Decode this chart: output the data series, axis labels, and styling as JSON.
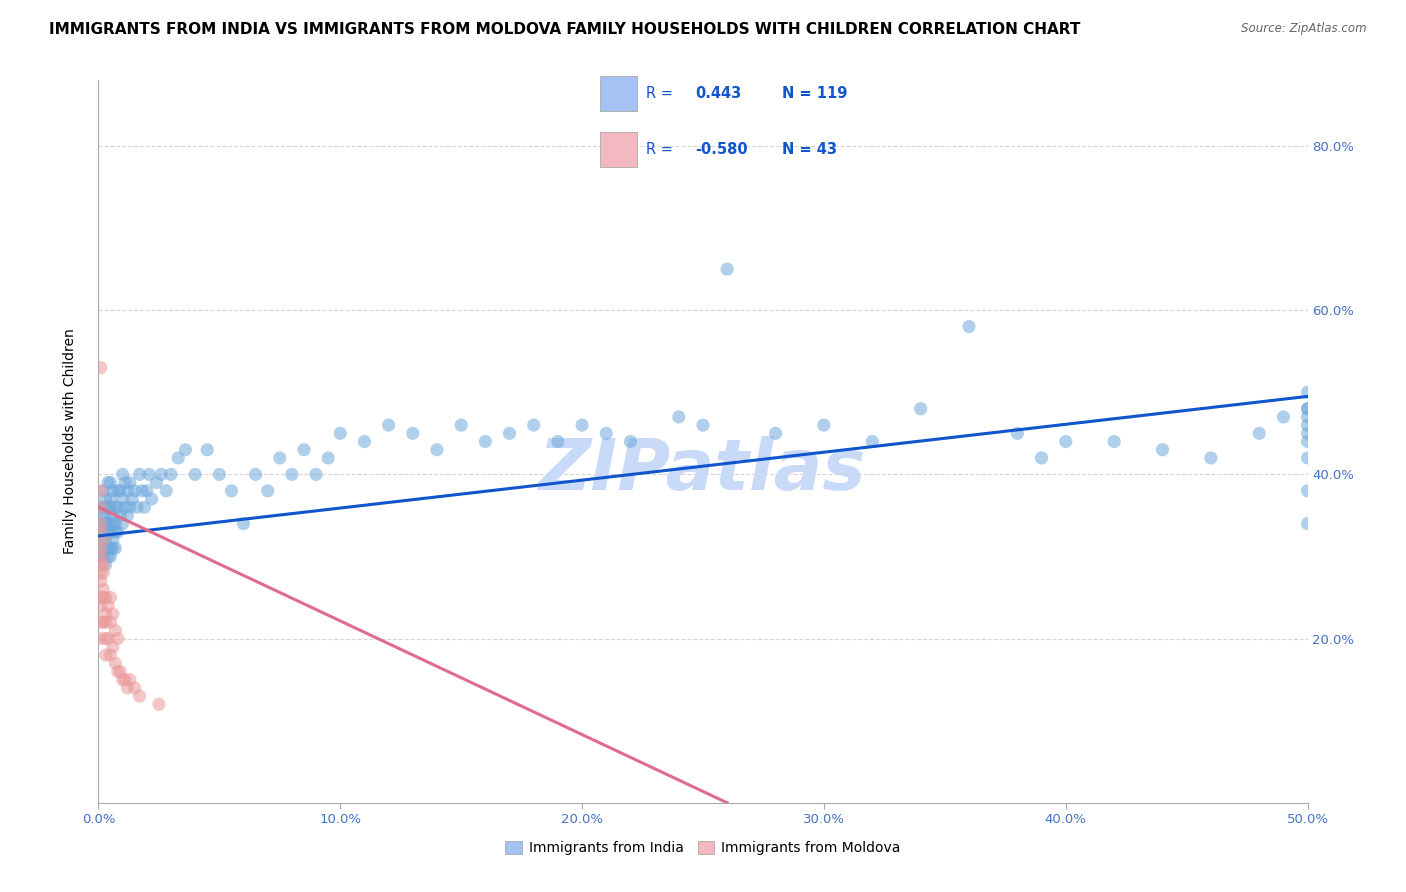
{
  "title": "IMMIGRANTS FROM INDIA VS IMMIGRANTS FROM MOLDOVA FAMILY HOUSEHOLDS WITH CHILDREN CORRELATION CHART",
  "source": "Source: ZipAtlas.com",
  "ylabel": "Family Households with Children",
  "xlim": [
    0.0,
    0.5
  ],
  "ylim": [
    0.0,
    0.88
  ],
  "xtick_vals": [
    0.0,
    0.1,
    0.2,
    0.3,
    0.4,
    0.5
  ],
  "xtick_labels": [
    "0.0%",
    "10.0%",
    "20.0%",
    "30.0%",
    "40.0%",
    "50.0%"
  ],
  "ytick_vals": [
    0.2,
    0.4,
    0.6,
    0.8
  ],
  "ytick_labels": [
    "20.0%",
    "40.0%",
    "60.0%",
    "80.0%"
  ],
  "india_color": "#6fa8dc",
  "moldova_color": "#ea9999",
  "india_line_color": "#1155cc",
  "moldova_line_color": "#e06c8c",
  "legend_india_fill": "#a4c2f4",
  "legend_moldova_fill": "#f4b8c1",
  "R_india": "0.443",
  "N_india": "119",
  "R_moldova": "-0.580",
  "N_moldova": "43",
  "legend_text_color": "#1155cc",
  "background_color": "#ffffff",
  "grid_color": "#cccccc",
  "watermark_text": "ZIPatlas",
  "watermark_color": "#c9daf8",
  "title_fontsize": 11,
  "ylabel_fontsize": 10,
  "tick_fontsize": 9.5,
  "tick_color": "#4472c4",
  "india_x": [
    0.001,
    0.001,
    0.001,
    0.001,
    0.001,
    0.002,
    0.002,
    0.002,
    0.002,
    0.002,
    0.002,
    0.003,
    0.003,
    0.003,
    0.003,
    0.003,
    0.003,
    0.004,
    0.004,
    0.004,
    0.004,
    0.004,
    0.004,
    0.005,
    0.005,
    0.005,
    0.005,
    0.005,
    0.005,
    0.005,
    0.006,
    0.006,
    0.006,
    0.006,
    0.006,
    0.007,
    0.007,
    0.007,
    0.007,
    0.008,
    0.008,
    0.008,
    0.009,
    0.009,
    0.01,
    0.01,
    0.01,
    0.011,
    0.011,
    0.012,
    0.012,
    0.013,
    0.013,
    0.014,
    0.015,
    0.016,
    0.017,
    0.018,
    0.019,
    0.02,
    0.021,
    0.022,
    0.024,
    0.026,
    0.028,
    0.03,
    0.033,
    0.036,
    0.04,
    0.045,
    0.05,
    0.055,
    0.06,
    0.065,
    0.07,
    0.075,
    0.08,
    0.085,
    0.09,
    0.095,
    0.1,
    0.11,
    0.12,
    0.13,
    0.14,
    0.15,
    0.16,
    0.17,
    0.18,
    0.19,
    0.2,
    0.21,
    0.22,
    0.24,
    0.25,
    0.26,
    0.28,
    0.3,
    0.32,
    0.34,
    0.36,
    0.38,
    0.39,
    0.4,
    0.42,
    0.44,
    0.46,
    0.48,
    0.49,
    0.5,
    0.5,
    0.5,
    0.5,
    0.5,
    0.5,
    0.5,
    0.5,
    0.5,
    0.5
  ],
  "india_y": [
    0.33,
    0.34,
    0.31,
    0.36,
    0.3,
    0.32,
    0.35,
    0.38,
    0.3,
    0.33,
    0.36,
    0.31,
    0.34,
    0.37,
    0.29,
    0.32,
    0.35,
    0.3,
    0.33,
    0.36,
    0.39,
    0.31,
    0.34,
    0.3,
    0.33,
    0.36,
    0.39,
    0.31,
    0.34,
    0.37,
    0.32,
    0.35,
    0.38,
    0.31,
    0.34,
    0.33,
    0.36,
    0.31,
    0.34,
    0.36,
    0.33,
    0.38,
    0.35,
    0.38,
    0.34,
    0.37,
    0.4,
    0.36,
    0.39,
    0.35,
    0.38,
    0.36,
    0.39,
    0.37,
    0.38,
    0.36,
    0.4,
    0.38,
    0.36,
    0.38,
    0.4,
    0.37,
    0.39,
    0.4,
    0.38,
    0.4,
    0.42,
    0.43,
    0.4,
    0.43,
    0.4,
    0.38,
    0.34,
    0.4,
    0.38,
    0.42,
    0.4,
    0.43,
    0.4,
    0.42,
    0.45,
    0.44,
    0.46,
    0.45,
    0.43,
    0.46,
    0.44,
    0.45,
    0.46,
    0.44,
    0.46,
    0.45,
    0.44,
    0.47,
    0.46,
    0.65,
    0.45,
    0.46,
    0.44,
    0.48,
    0.58,
    0.45,
    0.42,
    0.44,
    0.44,
    0.43,
    0.42,
    0.45,
    0.47,
    0.34,
    0.38,
    0.42,
    0.44,
    0.46,
    0.48,
    0.45,
    0.47,
    0.48,
    0.5
  ],
  "moldova_x": [
    0.001,
    0.001,
    0.001,
    0.001,
    0.001,
    0.001,
    0.001,
    0.001,
    0.001,
    0.001,
    0.001,
    0.001,
    0.001,
    0.002,
    0.002,
    0.002,
    0.002,
    0.002,
    0.002,
    0.003,
    0.003,
    0.003,
    0.003,
    0.003,
    0.004,
    0.004,
    0.005,
    0.005,
    0.005,
    0.006,
    0.006,
    0.007,
    0.007,
    0.008,
    0.008,
    0.009,
    0.01,
    0.011,
    0.012,
    0.013,
    0.015,
    0.017,
    0.025
  ],
  "moldova_y": [
    0.33,
    0.3,
    0.34,
    0.31,
    0.28,
    0.36,
    0.38,
    0.25,
    0.27,
    0.22,
    0.2,
    0.24,
    0.29,
    0.26,
    0.29,
    0.32,
    0.22,
    0.25,
    0.28,
    0.22,
    0.25,
    0.2,
    0.23,
    0.18,
    0.2,
    0.24,
    0.18,
    0.22,
    0.25,
    0.19,
    0.23,
    0.17,
    0.21,
    0.16,
    0.2,
    0.16,
    0.15,
    0.15,
    0.14,
    0.15,
    0.14,
    0.13,
    0.12
  ],
  "moldova_outlier_x": [
    0.001
  ],
  "moldova_outlier_y": [
    0.53
  ],
  "india_line_x0": 0.0,
  "india_line_x1": 0.5,
  "india_line_y0": 0.325,
  "india_line_y1": 0.495,
  "moldova_line_x0": 0.0,
  "moldova_line_x1": 0.26,
  "moldova_line_y0": 0.36,
  "moldova_line_y1": 0.0
}
